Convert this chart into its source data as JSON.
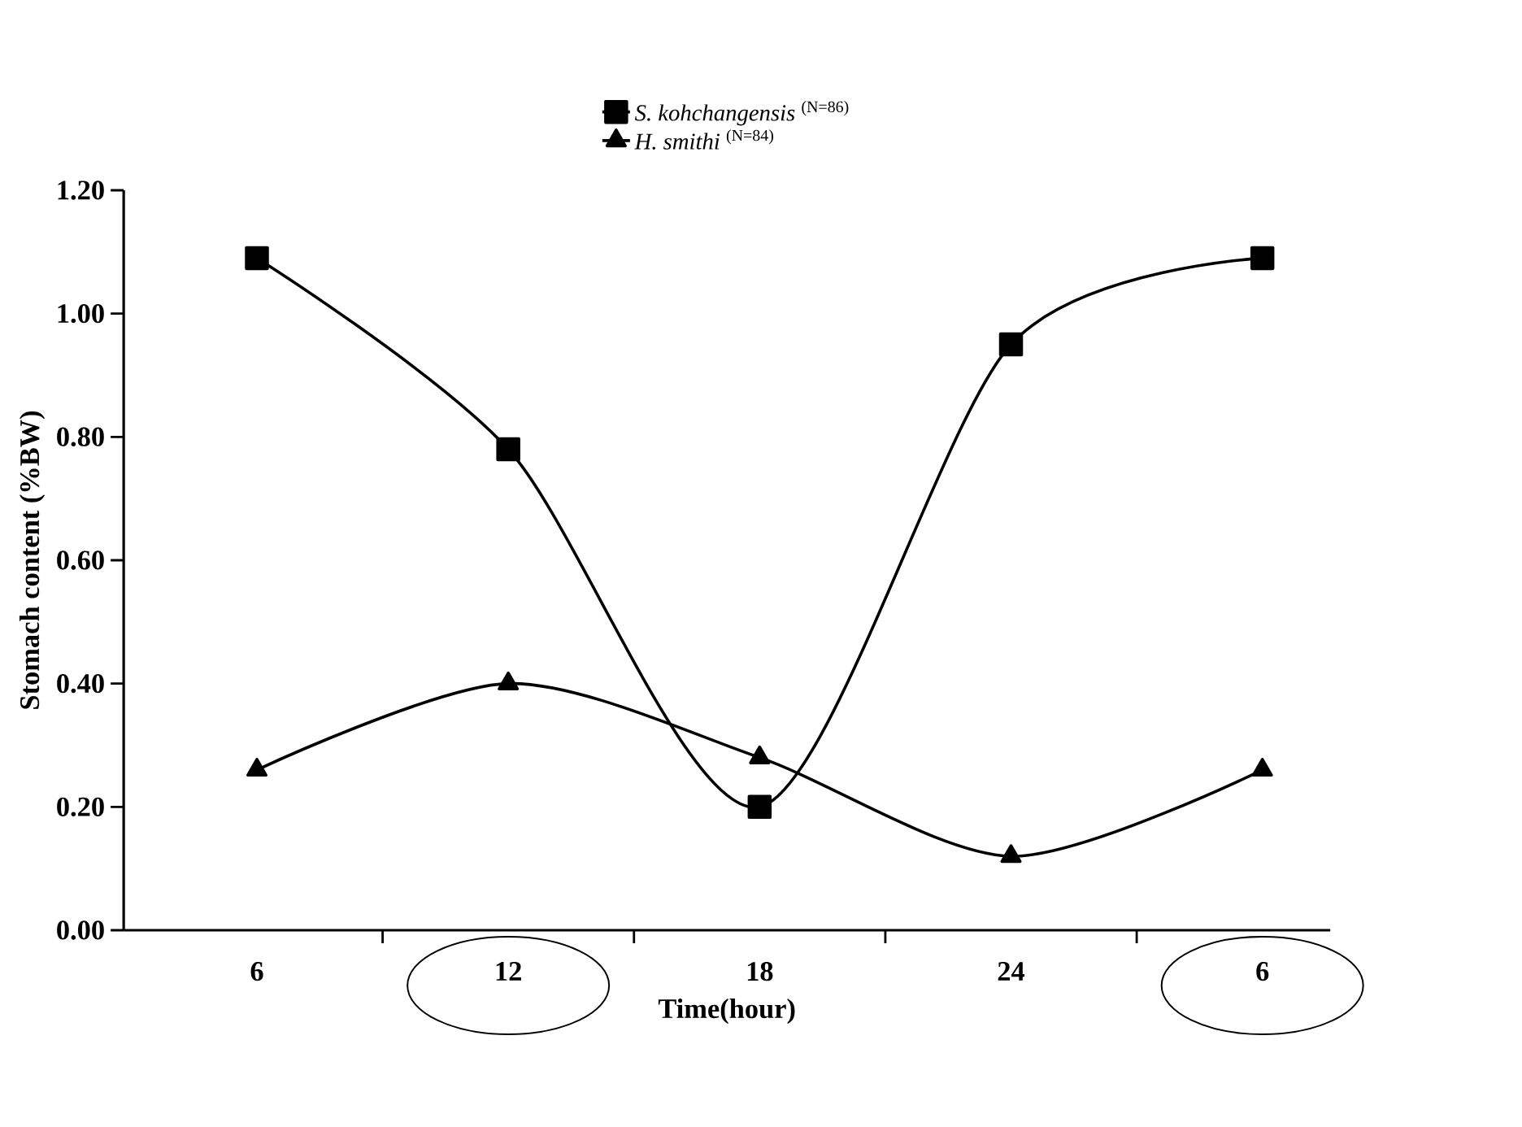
{
  "chart_data": {
    "type": "line",
    "xlabel": "Time(hour)",
    "ylabel": "Stomach content (%BW)",
    "categories": [
      "6",
      "12",
      "18",
      "24",
      "6"
    ],
    "series": [
      {
        "name": "*S. kohchangensis* $^{(N=86)}$",
        "color": "#000000",
        "marker": "square",
        "values": [
          1.09,
          0.78,
          0.2,
          0.95,
          1.09
        ]
      },
      {
        "name": "*H. smithi* $^{(N=84)}$",
        "color": "#000000",
        "marker": "triangle",
        "values": [
          0.26,
          0.4,
          0.28,
          0.12,
          0.26
        ]
      }
    ],
    "ylim": [
      0,
      1.2
    ],
    "yticks": [
      {
        "value": 0,
        "label": "0.00"
      },
      {
        "value": 0.2,
        "label": "0.20"
      },
      {
        "value": 0.4,
        "label": "0.40"
      },
      {
        "value": 0.6,
        "label": "0.60"
      },
      {
        "value": 0.8,
        "label": "0.80"
      },
      {
        "value": 1.0,
        "label": "1.00"
      },
      {
        "value": 1.2,
        "label": "1.20"
      }
    ],
    "legend": "top",
    "line_style": "solid",
    "grid": false
  }
}
